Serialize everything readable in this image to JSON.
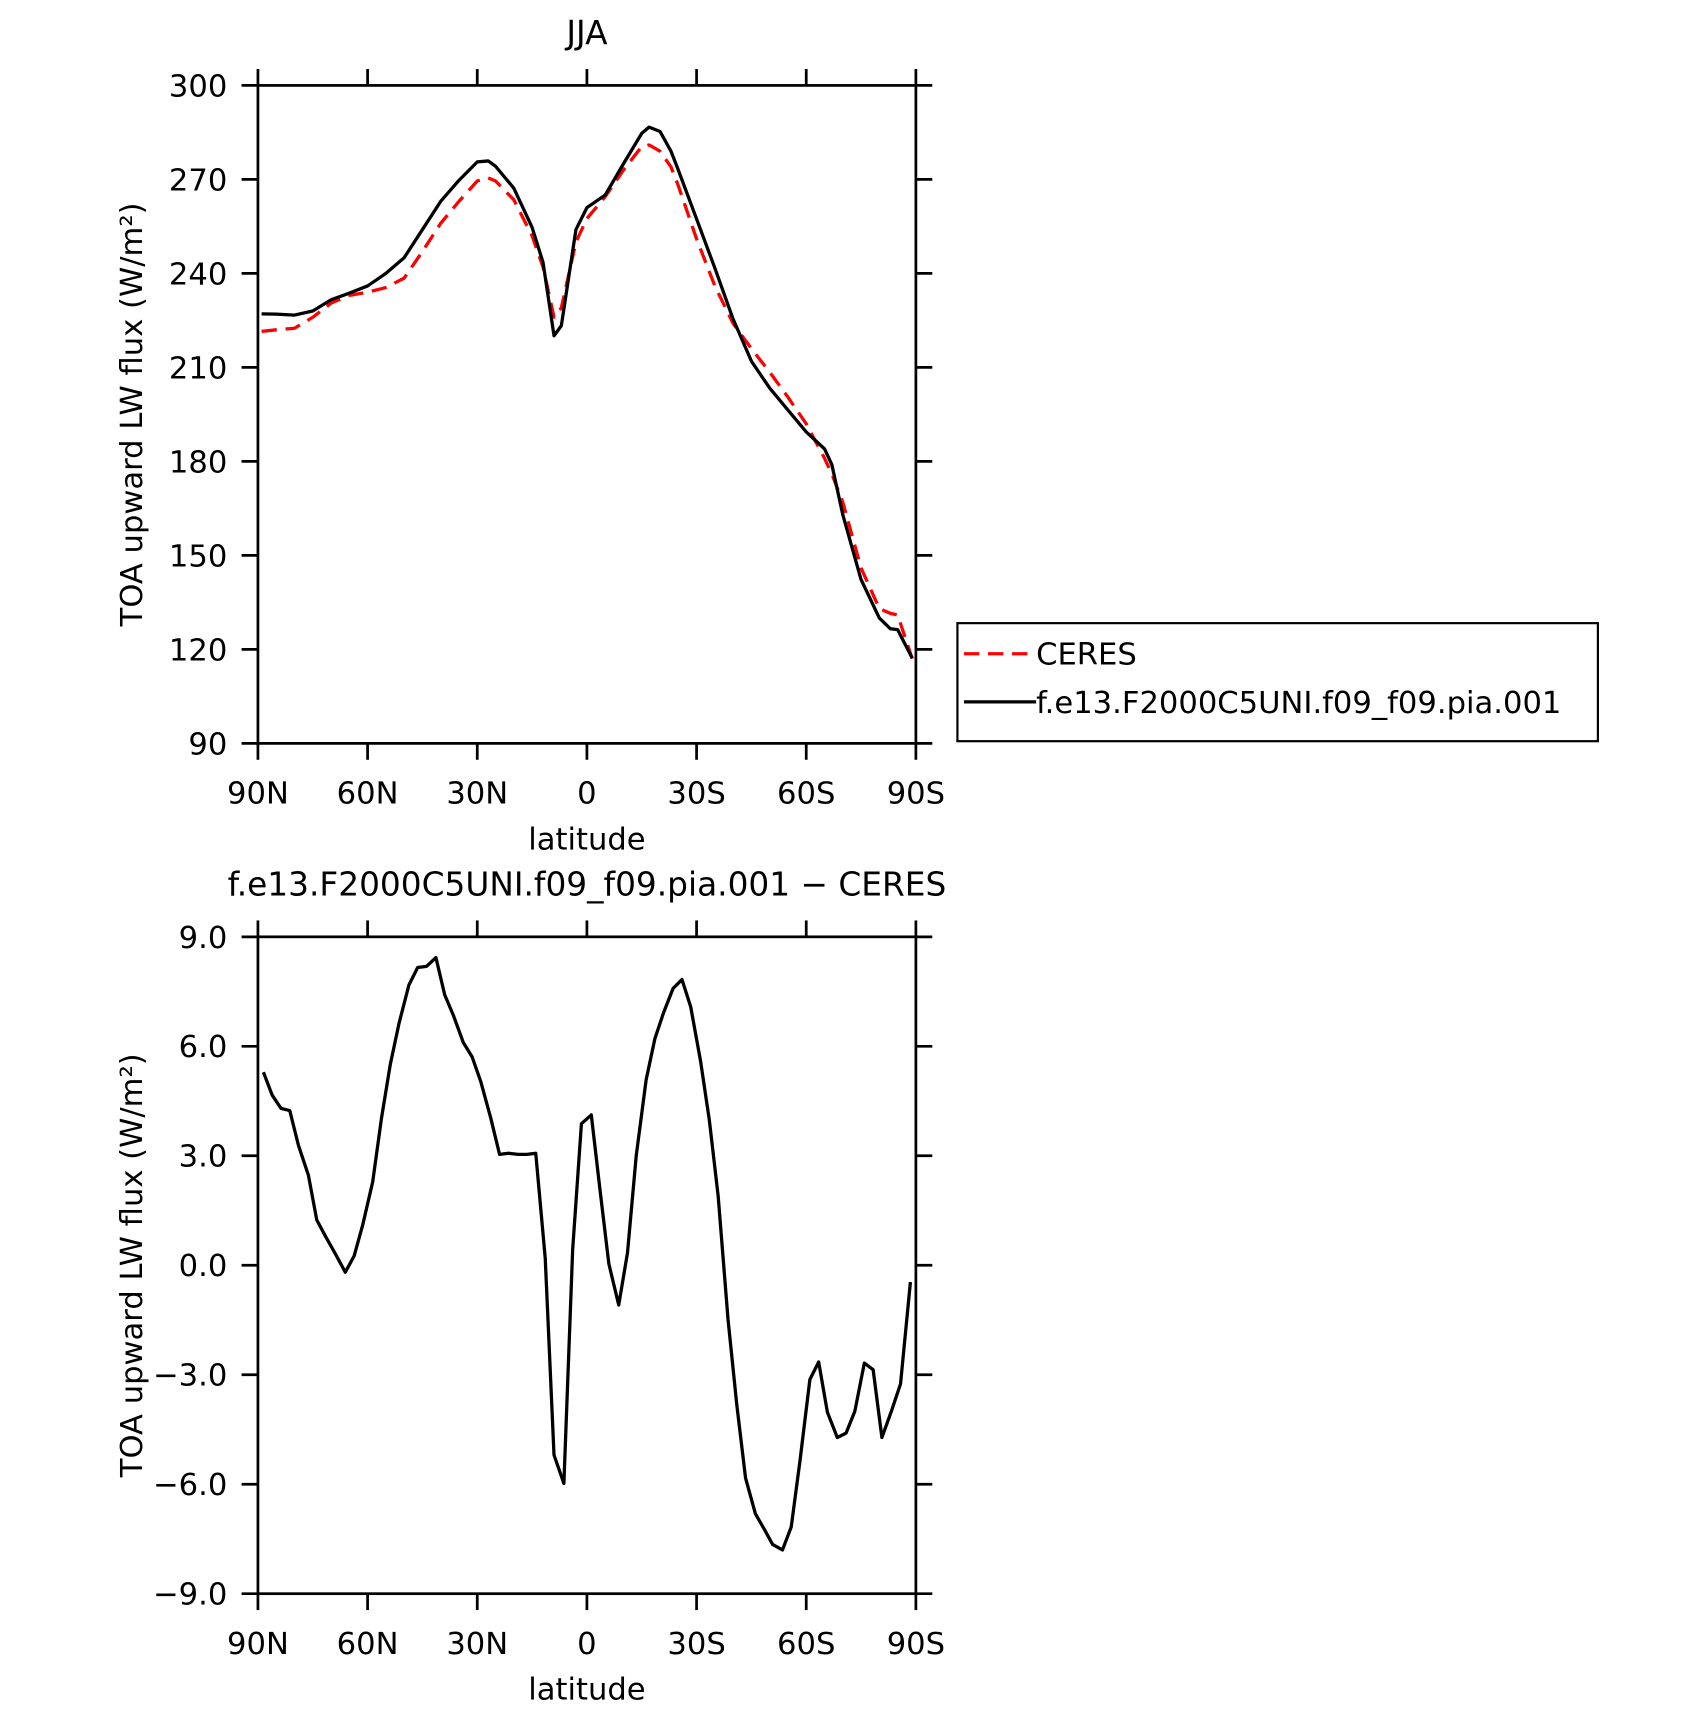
{
  "chart_data": [
    {
      "type": "line",
      "title": "JJA",
      "xlabel": "latitude",
      "ylabel": "TOA upward LW flux (W/m²)",
      "x": [
        89,
        85,
        80,
        75,
        70,
        65,
        60,
        55,
        50,
        45,
        40,
        35,
        30,
        27,
        25,
        20,
        15,
        12,
        9,
        7,
        3,
        0,
        -5,
        -10,
        -15,
        -17,
        -20,
        -23,
        -25,
        -30,
        -35,
        -40,
        -45,
        -50,
        -55,
        -60,
        -65,
        -67,
        -70,
        -75,
        -80,
        -83,
        -85,
        -89
      ],
      "series": [
        {
          "name": "CERES",
          "color": "#ff0000",
          "linestyle": "dashed",
          "values": [
            221.5,
            222,
            222.5,
            226,
            230.5,
            233,
            234,
            235.5,
            238.5,
            247,
            256,
            263,
            269.5,
            270.5,
            269.5,
            263.5,
            252,
            242,
            226,
            229,
            250,
            257.5,
            264.5,
            273,
            280.5,
            281,
            279,
            274,
            268,
            251,
            236,
            224,
            216,
            208.5,
            200.5,
            192,
            181,
            176,
            167,
            146,
            133,
            131.5,
            131,
            117
          ]
        },
        {
          "name": "f.e13.F2000C5UNI.f09_f09.pia.001",
          "color": "#000000",
          "linestyle": "solid",
          "values": [
            227.1,
            227,
            226.7,
            228,
            231.6,
            233.7,
            236,
            240,
            245,
            254,
            263,
            269.7,
            275.6,
            275.9,
            274.2,
            267.2,
            254.7,
            243.5,
            220.1,
            223.3,
            254,
            261,
            265,
            275,
            284.7,
            286.7,
            285.3,
            279,
            273,
            257.4,
            241.7,
            225.4,
            212,
            203.4,
            196.4,
            189.4,
            184,
            179,
            163,
            142.3,
            130,
            126.6,
            126.3,
            117.2
          ]
        }
      ],
      "xlim": [
        90,
        -90
      ],
      "xticks": [
        {
          "value": 90,
          "label": "90N"
        },
        {
          "value": 60,
          "label": "60N"
        },
        {
          "value": 30,
          "label": "30N"
        },
        0,
        {
          "value": -30,
          "label": "30S"
        },
        {
          "value": -60,
          "label": "60S"
        },
        {
          "value": -90,
          "label": "90S"
        }
      ],
      "ylim": [
        90,
        300
      ],
      "yticks": [
        90,
        120,
        150,
        180,
        210,
        240,
        270,
        300
      ],
      "legend": "right"
    },
    {
      "type": "line",
      "title": "f.e13.F2000C5UNI.f09_f09.pia.001 − CERES",
      "xlabel": "latitude",
      "ylabel": "TOA upward LW flux (W/m²)",
      "x": [
        88.5,
        86.1,
        83.7,
        81.3,
        78.9,
        76.2,
        73.9,
        71.5,
        68.8,
        66.1,
        63.7,
        61.3,
        58.6,
        56.2,
        53.8,
        51.4,
        48.7,
        46.3,
        43.9,
        41.3,
        38.9,
        36.5,
        33.8,
        31.4,
        29,
        26.3,
        23.9,
        21.5,
        18.8,
        16.4,
        14,
        11.4,
        9,
        6.3,
        3.9,
        1.5,
        -1.2,
        -3.6,
        -6,
        -8.7,
        -11.1,
        -13.5,
        -16.2,
        -18.6,
        -21,
        -23.6,
        -26,
        -28.4,
        -31.1,
        -33.5,
        -35.9,
        -38.6,
        -41,
        -43.4,
        -46.1,
        -48.5,
        -50.8,
        -53.5,
        -55.9,
        -58.3,
        -61,
        -63.4,
        -65.8,
        -68.5,
        -70.9,
        -73.3,
        -75.9,
        -78.3,
        -80.7,
        -83.4,
        -85.8,
        -88.5
      ],
      "series": [
        {
          "name": "f.e13.F2000C5UNI.f09_f09.pia.001 − CERES",
          "color": "#000000",
          "linestyle": "solid",
          "values": [
            5.29,
            4.66,
            4.3,
            4.24,
            3.28,
            2.47,
            1.24,
            0.79,
            0.31,
            -0.19,
            0.25,
            1.12,
            2.29,
            4.03,
            5.5,
            6.63,
            7.68,
            8.16,
            8.19,
            8.43,
            7.41,
            6.84,
            6.1,
            5.71,
            5.02,
            4.03,
            3.04,
            3.07,
            3.04,
            3.04,
            3.07,
            0.19,
            -5.2,
            -5.98,
            0.43,
            3.88,
            4.12,
            2.05,
            0.04,
            -1.09,
            0.34,
            3.01,
            5.08,
            6.21,
            6.93,
            7.59,
            7.83,
            7.08,
            5.59,
            3.97,
            1.9,
            -1.48,
            -3.82,
            -5.83,
            -6.81,
            -7.23,
            -7.65,
            -7.8,
            -7.17,
            -5.35,
            -3.13,
            -2.65,
            -4.03,
            -4.72,
            -4.6,
            -4,
            -2.68,
            -2.86,
            -4.72,
            -3.97,
            -3.25,
            -0.46
          ]
        }
      ],
      "xlim": [
        90,
        -90
      ],
      "xticks": [
        {
          "value": 90,
          "label": "90N"
        },
        {
          "value": 60,
          "label": "60N"
        },
        {
          "value": 30,
          "label": "30N"
        },
        0,
        {
          "value": -30,
          "label": "30S"
        },
        {
          "value": -60,
          "label": "60S"
        },
        {
          "value": -90,
          "label": "90S"
        }
      ],
      "ylim": [
        -9,
        9
      ],
      "yticks": [
        {
          "value": -9,
          "label": "−9.0"
        },
        {
          "value": -6,
          "label": "−6.0"
        },
        {
          "value": -3,
          "label": "−3.0"
        },
        {
          "value": 0,
          "label": "0.0"
        },
        {
          "value": 3,
          "label": "3.0"
        },
        {
          "value": 6,
          "label": "6.0"
        },
        {
          "value": 9,
          "label": "9.0"
        }
      ]
    }
  ]
}
